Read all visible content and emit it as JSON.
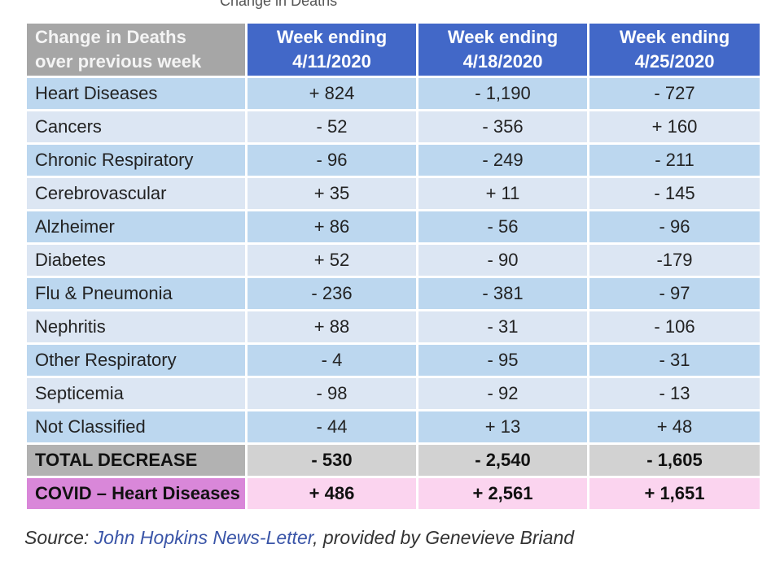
{
  "top_fragment": "Change in Deaths",
  "table": {
    "header": {
      "label_line1": "Change in Deaths",
      "label_line2": "over previous week",
      "weeks": [
        {
          "line1": "Week ending",
          "line2": "4/11/2020"
        },
        {
          "line1": "Week ending",
          "line2": "4/18/2020"
        },
        {
          "line1": "Week ending",
          "line2": "4/25/2020"
        }
      ]
    },
    "rows": [
      {
        "label": "Heart Diseases",
        "v1": "+ 824",
        "v2": "- 1,190",
        "v3": "- 727"
      },
      {
        "label": "Cancers",
        "v1": "- 52",
        "v2": "- 356",
        "v3": "+ 160"
      },
      {
        "label": "Chronic Respiratory",
        "v1": "- 96",
        "v2": "- 249",
        "v3": "- 211"
      },
      {
        "label": "Cerebrovascular",
        "v1": "+ 35",
        "v2": "+ 11",
        "v3": "- 145"
      },
      {
        "label": "Alzheimer",
        "v1": "+ 86",
        "v2": "- 56",
        "v3": "- 96"
      },
      {
        "label": "Diabetes",
        "v1": "+ 52",
        "v2": "- 90",
        "v3": "-179"
      },
      {
        "label": "Flu & Pneumonia",
        "v1": "- 236",
        "v2": "- 381",
        "v3": "- 97"
      },
      {
        "label": "Nephritis",
        "v1": "+ 88",
        "v2": "- 31",
        "v3": "- 106"
      },
      {
        "label": "Other Respiratory",
        "v1": "- 4",
        "v2": "- 95",
        "v3": "- 31"
      },
      {
        "label": "Septicemia",
        "v1": "- 98",
        "v2": "- 92",
        "v3": "- 13"
      },
      {
        "label": "Not Classified",
        "v1": "- 44",
        "v2": "+ 13",
        "v3": "+ 48"
      }
    ],
    "total": {
      "label": "TOTAL DECREASE",
      "v1": "- 530",
      "v2": "- 2,540",
      "v3": "- 1,605"
    },
    "covid": {
      "label": "COVID – Heart Diseases",
      "v1": "+ 486",
      "v2": "+ 2,561",
      "v3": "+ 1,651"
    }
  },
  "source": {
    "prefix": "Source: ",
    "link_text": "John Hopkins News-Letter",
    "suffix": ", provided by Genevieve Briand"
  },
  "colors": {
    "header_blue": "#4268c8",
    "header_gray": "#a6a6a6",
    "row_light_blue": "#bcd7ef",
    "row_pale_blue": "#dce6f3",
    "total_gray": "#d2d2d2",
    "covid_pink": "#fbd4ef",
    "covid_label_magenta": "#d987d9",
    "link_blue": "#3a55a8"
  }
}
